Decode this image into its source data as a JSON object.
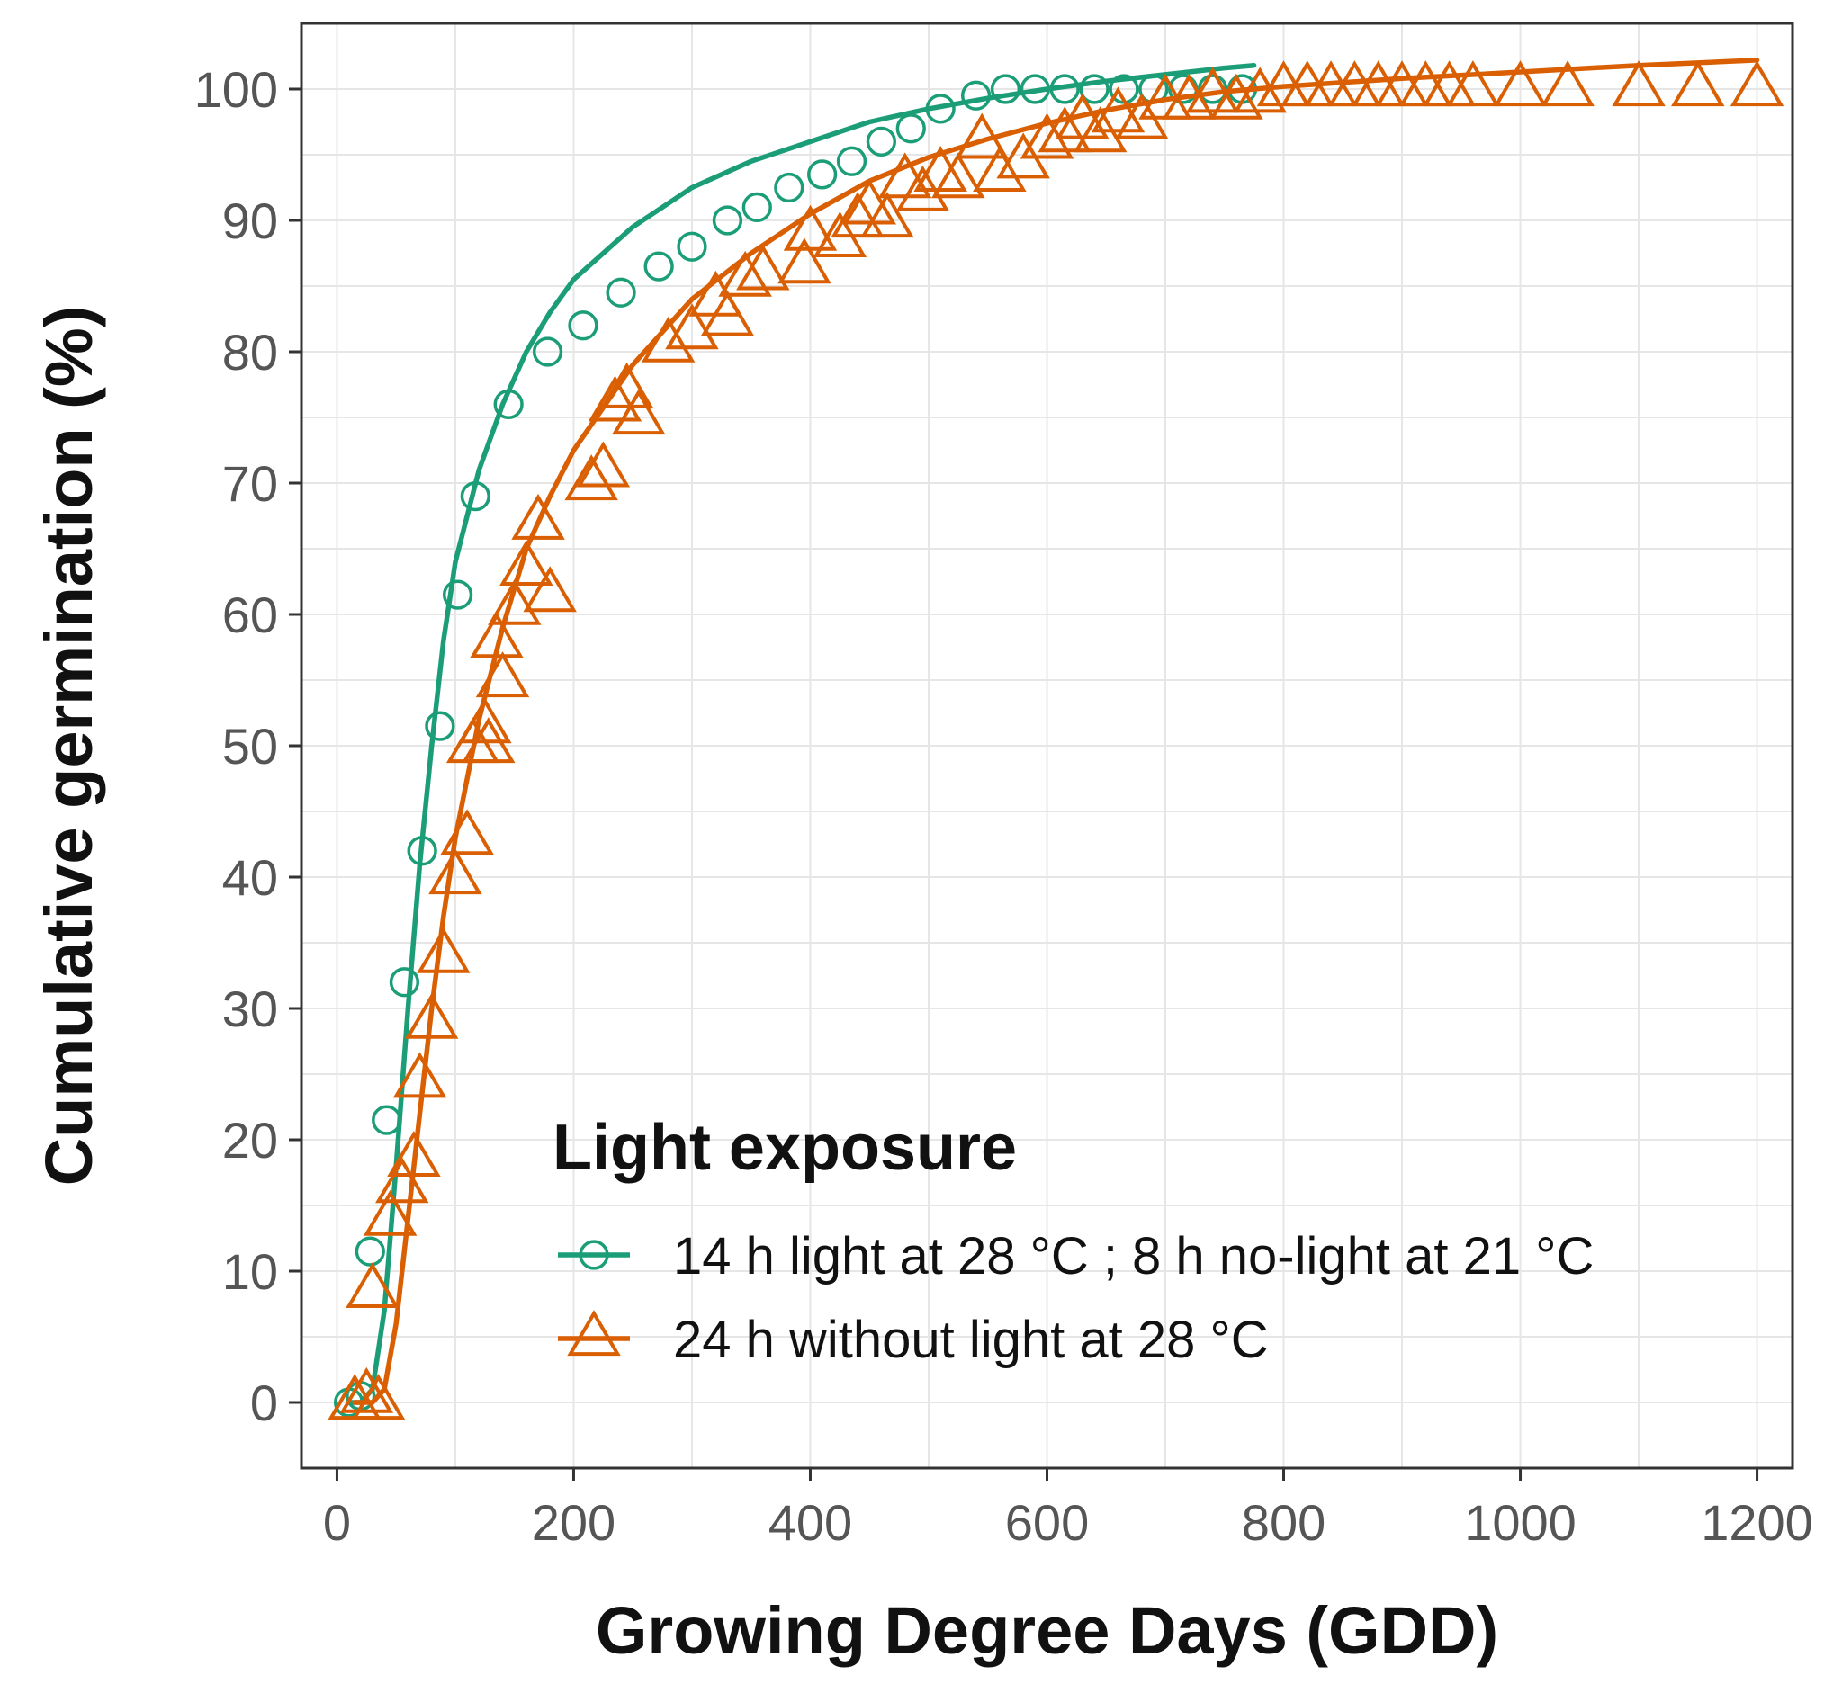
{
  "chart_data": {
    "type": "scatter",
    "xlabel": "Growing Degree Days (GDD)",
    "ylabel": "Cumulative germination (%)",
    "xlim": [
      -30,
      1230
    ],
    "ylim": [
      -5,
      105
    ],
    "x_ticks": [
      0,
      200,
      400,
      600,
      800,
      1000,
      1200
    ],
    "y_ticks": [
      0,
      10,
      20,
      30,
      40,
      50,
      60,
      70,
      80,
      90,
      100
    ],
    "x_tick_labels": [
      "0",
      "200",
      "400",
      "600",
      "800",
      "1000",
      "1200"
    ],
    "y_tick_labels": [
      "0",
      "10",
      "20",
      "30",
      "40",
      "50",
      "60",
      "70",
      "80",
      "90",
      "100"
    ],
    "grid": true,
    "legend": {
      "title": "Light exposure",
      "placement": "inside-bottom-right"
    },
    "series": [
      {
        "name": "14 h light at 28 °C ; 8 h no-light at  21 °C",
        "marker": "circle",
        "color": "#1b9e77",
        "points": [
          [
            10,
            0
          ],
          [
            20,
            0.5
          ],
          [
            28,
            11.5
          ],
          [
            42,
            21.5
          ],
          [
            57,
            32
          ],
          [
            72,
            42
          ],
          [
            87,
            51.5
          ],
          [
            102,
            61.5
          ],
          [
            117,
            69
          ],
          [
            145,
            76
          ],
          [
            178,
            80
          ],
          [
            208,
            82
          ],
          [
            240,
            84.5
          ],
          [
            272,
            86.5
          ],
          [
            300,
            88
          ],
          [
            330,
            90
          ],
          [
            355,
            91
          ],
          [
            382,
            92.5
          ],
          [
            410,
            93.5
          ],
          [
            435,
            94.5
          ],
          [
            460,
            96
          ],
          [
            485,
            97
          ],
          [
            510,
            98.5
          ],
          [
            540,
            99.5
          ],
          [
            565,
            100
          ],
          [
            590,
            100
          ],
          [
            615,
            100
          ],
          [
            640,
            100
          ],
          [
            665,
            100
          ],
          [
            690,
            100
          ],
          [
            715,
            100
          ],
          [
            740,
            100
          ],
          [
            765,
            100
          ]
        ],
        "fit": [
          [
            10,
            0
          ],
          [
            20,
            0
          ],
          [
            30,
            1
          ],
          [
            40,
            7
          ],
          [
            50,
            18
          ],
          [
            60,
            30
          ],
          [
            70,
            41
          ],
          [
            80,
            50
          ],
          [
            90,
            58
          ],
          [
            100,
            64
          ],
          [
            120,
            71
          ],
          [
            140,
            76
          ],
          [
            160,
            80
          ],
          [
            180,
            83
          ],
          [
            200,
            85.5
          ],
          [
            250,
            89.5
          ],
          [
            300,
            92.5
          ],
          [
            350,
            94.5
          ],
          [
            400,
            96
          ],
          [
            450,
            97.5
          ],
          [
            500,
            98.5
          ],
          [
            550,
            99.3
          ],
          [
            600,
            100
          ],
          [
            650,
            100.6
          ],
          [
            700,
            101.1
          ],
          [
            750,
            101.6
          ],
          [
            775,
            101.8
          ]
        ]
      },
      {
        "name": "24 h without light at 28 °C",
        "marker": "triangle",
        "color": "#d95f02",
        "points": [
          [
            15,
            0
          ],
          [
            25,
            0.5
          ],
          [
            35,
            0
          ],
          [
            30,
            8.5
          ],
          [
            45,
            14
          ],
          [
            55,
            16.5
          ],
          [
            65,
            18.5
          ],
          [
            70,
            24.5
          ],
          [
            80,
            29
          ],
          [
            90,
            34
          ],
          [
            100,
            40
          ],
          [
            110,
            43
          ],
          [
            115,
            50
          ],
          [
            125,
            51.5
          ],
          [
            128,
            50
          ],
          [
            135,
            58
          ],
          [
            140,
            55
          ],
          [
            150,
            60.5
          ],
          [
            160,
            63.5
          ],
          [
            170,
            67
          ],
          [
            180,
            61.5
          ],
          [
            215,
            70
          ],
          [
            225,
            71
          ],
          [
            235,
            76
          ],
          [
            245,
            77
          ],
          [
            255,
            75
          ],
          [
            280,
            80.5
          ],
          [
            300,
            81.5
          ],
          [
            320,
            84
          ],
          [
            330,
            82.5
          ],
          [
            345,
            85.5
          ],
          [
            360,
            86
          ],
          [
            395,
            86.5
          ],
          [
            400,
            89
          ],
          [
            425,
            88.5
          ],
          [
            440,
            90
          ],
          [
            450,
            91
          ],
          [
            465,
            90
          ],
          [
            480,
            93
          ],
          [
            495,
            92
          ],
          [
            510,
            93.5
          ],
          [
            525,
            93
          ],
          [
            545,
            96
          ],
          [
            560,
            93.5
          ],
          [
            580,
            94.5
          ],
          [
            600,
            96
          ],
          [
            615,
            96.5
          ],
          [
            630,
            97.5
          ],
          [
            645,
            96.5
          ],
          [
            660,
            98
          ],
          [
            680,
            97.5
          ],
          [
            700,
            99
          ],
          [
            720,
            99
          ],
          [
            740,
            99.5
          ],
          [
            760,
            99
          ],
          [
            780,
            99.5
          ],
          [
            800,
            100
          ],
          [
            820,
            100
          ],
          [
            840,
            100
          ],
          [
            860,
            100
          ],
          [
            880,
            100
          ],
          [
            900,
            100
          ],
          [
            920,
            100
          ],
          [
            940,
            100
          ],
          [
            960,
            100
          ],
          [
            1000,
            100
          ],
          [
            1040,
            100
          ],
          [
            1100,
            100
          ],
          [
            1150,
            100
          ],
          [
            1200,
            100
          ]
        ],
        "fit": [
          [
            15,
            0
          ],
          [
            30,
            0
          ],
          [
            40,
            1
          ],
          [
            50,
            6
          ],
          [
            60,
            14
          ],
          [
            70,
            22
          ],
          [
            80,
            30
          ],
          [
            90,
            37
          ],
          [
            100,
            43
          ],
          [
            120,
            52
          ],
          [
            140,
            59
          ],
          [
            160,
            65
          ],
          [
            180,
            69
          ],
          [
            200,
            72.5
          ],
          [
            250,
            79
          ],
          [
            300,
            84
          ],
          [
            350,
            87.5
          ],
          [
            400,
            90.5
          ],
          [
            450,
            93
          ],
          [
            500,
            94.8
          ],
          [
            550,
            96.2
          ],
          [
            600,
            97.4
          ],
          [
            650,
            98.4
          ],
          [
            700,
            99.2
          ],
          [
            750,
            99.8
          ],
          [
            800,
            100.2
          ],
          [
            900,
            100.8
          ],
          [
            1000,
            101.3
          ],
          [
            1100,
            101.8
          ],
          [
            1200,
            102.2
          ]
        ]
      }
    ]
  }
}
